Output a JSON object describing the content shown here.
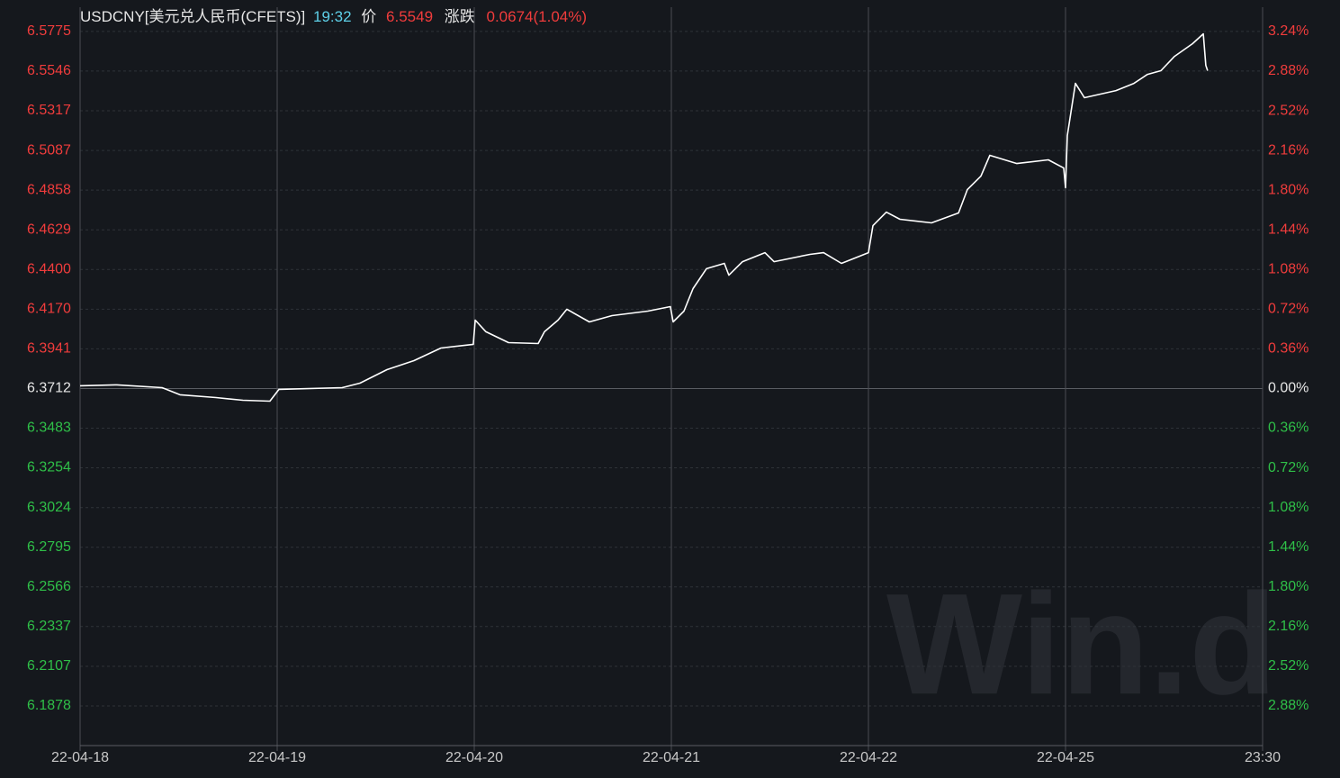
{
  "chart_data": {
    "type": "line",
    "header": {
      "title": "USDCNY[美元兑人民币(CFETS)]",
      "time": "19:32",
      "price_label": "价",
      "price": 6.5549,
      "change_label": "涨跌",
      "change": "0.0674(1.04%)"
    },
    "watermark": "Win.d",
    "base": 6.3712,
    "up_color": "#f03c3c",
    "down_color": "#2fbf48",
    "neutral_color": "#e6e6e6",
    "grid": true,
    "xlim": [
      0,
      6
    ],
    "xticks": [
      {
        "value": 0,
        "label": "22-04-18"
      },
      {
        "value": 1,
        "label": "22-04-19"
      },
      {
        "value": 2,
        "label": "22-04-20"
      },
      {
        "value": 3,
        "label": "22-04-21"
      },
      {
        "value": 4,
        "label": "22-04-22"
      },
      {
        "value": 5,
        "label": "22-04-25"
      },
      {
        "value": 6,
        "label": "23:30"
      }
    ],
    "ylim": [
      6.1649,
      6.5915
    ],
    "yticks": [
      6.5775,
      6.5546,
      6.5317,
      6.5087,
      6.4858,
      6.4629,
      {
        "value": 6.44,
        "label": "6.4400"
      },
      {
        "value": 6.417,
        "label": "6.4170"
      },
      6.3941,
      6.3712,
      6.3483,
      6.3254,
      6.3024,
      6.2795,
      6.2566,
      6.2337,
      6.2107,
      6.1878
    ],
    "y2lim": [
      -3.24,
      3.46
    ],
    "y2ticks": [
      {
        "value": 3.24,
        "label": "3.24%"
      },
      {
        "value": 2.88,
        "label": "2.88%"
      },
      {
        "value": 2.52,
        "label": "2.52%"
      },
      {
        "value": 2.16,
        "label": "2.16%"
      },
      {
        "value": 1.8,
        "label": "1.80%"
      },
      {
        "value": 1.44,
        "label": "1.44%"
      },
      {
        "value": 1.08,
        "label": "1.08%"
      },
      {
        "value": 0.72,
        "label": "0.72%"
      },
      {
        "value": 0.36,
        "label": "0.36%"
      },
      {
        "value": 0,
        "label": "0.00%"
      },
      {
        "value": -0.36,
        "label": "0.36%"
      },
      {
        "value": -0.72,
        "label": "0.72%"
      },
      {
        "value": -1.08,
        "label": "1.08%"
      },
      {
        "value": -1.44,
        "label": "1.44%"
      },
      {
        "value": -1.8,
        "label": "1.80%"
      },
      {
        "value": -2.16,
        "label": "2.16%"
      },
      {
        "value": -2.52,
        "label": "2.52%"
      },
      {
        "value": -2.88,
        "label": "2.88%"
      }
    ],
    "series": [
      {
        "color": "#ffffff",
        "x": [
          0,
          0.187,
          0.416,
          0.507,
          0.689,
          0.826,
          0.963,
          1.009,
          1.329,
          1.42,
          1.557,
          1.694,
          1.831,
          1.995,
          2.005,
          2.059,
          2.174,
          2.324,
          2.356,
          2.425,
          2.47,
          2.584,
          2.699,
          2.881,
          2.995,
          3.009,
          3.064,
          3.11,
          3.178,
          3.269,
          3.292,
          3.361,
          3.475,
          3.521,
          3.703,
          3.772,
          3.863,
          4.0,
          4.023,
          4.091,
          4.16,
          4.32,
          4.457,
          4.502,
          4.571,
          4.616,
          4.753,
          4.913,
          4.991,
          5.0,
          5.009,
          5.05,
          5.096,
          5.256,
          5.347,
          5.416,
          5.484,
          5.553,
          5.644,
          5.699,
          5.712,
          5.721
        ],
        "values": [
          6.3728,
          6.3733,
          6.3717,
          6.3676,
          6.366,
          6.3644,
          6.3639,
          6.3707,
          6.3717,
          6.3743,
          6.3821,
          6.3873,
          6.3946,
          6.3967,
          6.4107,
          6.404,
          6.3977,
          6.3972,
          6.404,
          6.4107,
          6.417,
          6.4097,
          6.4133,
          6.4159,
          6.4185,
          6.4097,
          6.4159,
          6.4289,
          6.4404,
          6.4435,
          6.4367,
          6.4445,
          6.4497,
          6.4445,
          6.4487,
          6.4497,
          6.4435,
          6.4497,
          6.4653,
          6.4731,
          6.469,
          6.4669,
          6.4726,
          6.4861,
          6.4939,
          6.5059,
          6.5012,
          6.5033,
          6.4986,
          6.4872,
          6.5173,
          6.5475,
          6.5392,
          6.5433,
          6.5475,
          6.5527,
          6.5548,
          6.5631,
          6.5704,
          6.5761,
          6.5579,
          6.5548
        ]
      }
    ]
  }
}
